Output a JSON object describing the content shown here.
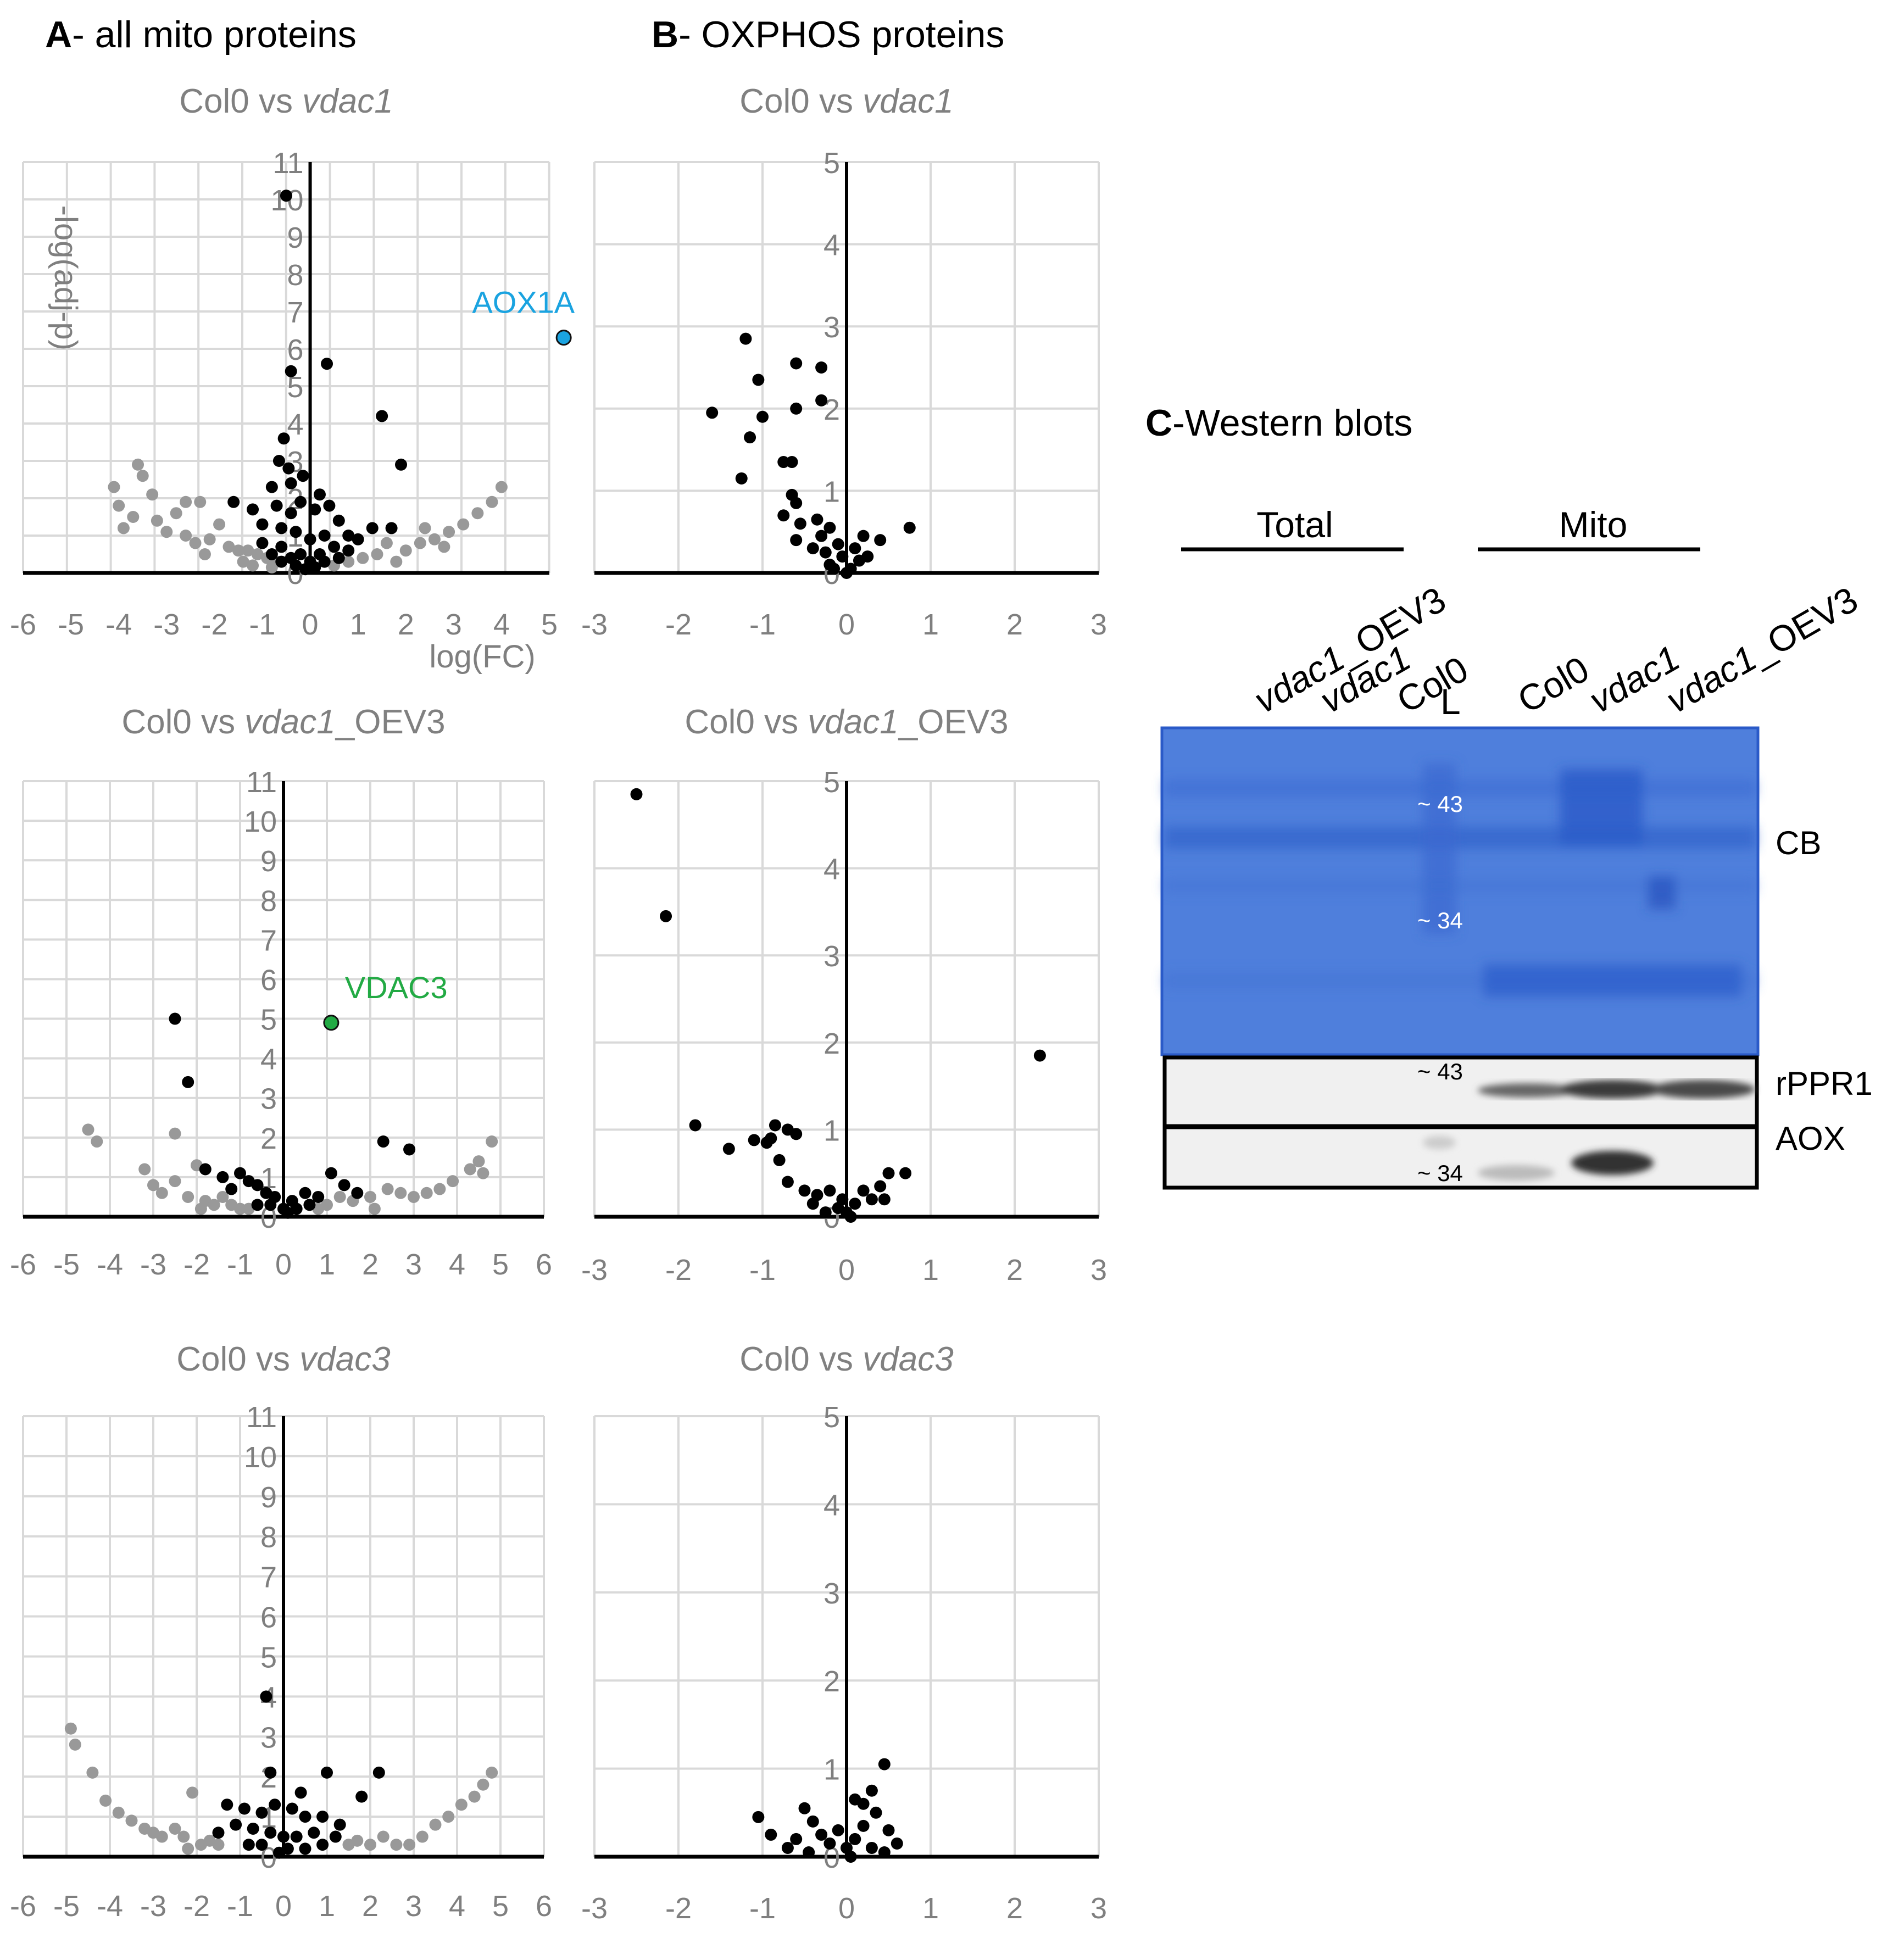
{
  "panel_headings": {
    "A": {
      "letter": "A",
      "text": "- all mito proteins"
    },
    "B": {
      "letter": "B",
      "text": "- OXPHOS proteins"
    },
    "C": {
      "letter": "C",
      "text": "-Western blots"
    }
  },
  "colors": {
    "grid": "#d9d9d9",
    "axis": "#000000",
    "tick": "#7f7f7f",
    "title": "#808080",
    "sig": "#000000",
    "nonsig": "#999999",
    "aox1a": "#1aa3e0",
    "vdac3": "#22aa44",
    "cb_blot": "#4f7fdc",
    "chemi": "#f0f0f0"
  },
  "chart_data": [
    {
      "id": "A1",
      "type": "scatter",
      "title": {
        "prefix": "Col0 vs ",
        "italic": "vdac1",
        "suffix": ""
      },
      "xlim": [
        -6,
        5
      ],
      "ylim": [
        0,
        11
      ],
      "xticks": [
        "-6",
        "-5",
        "-4",
        "-3",
        "-2",
        "-1",
        "0",
        "1",
        "2",
        "3",
        "4",
        "5"
      ],
      "yticks": [
        "0",
        "1",
        "2",
        "3",
        "4",
        "5",
        "6",
        "7",
        "8",
        "9",
        "10",
        "11"
      ],
      "xlabel": "log(FC)",
      "ylabel": "-log(adj-p)",
      "highlight": {
        "label": "AOX1A",
        "x": 5.3,
        "y": 6.3,
        "color_key": "aox1a"
      },
      "sig_points": [
        [
          -0.5,
          10.1
        ],
        [
          -0.4,
          5.4
        ],
        [
          0.35,
          5.6
        ],
        [
          -0.55,
          3.6
        ],
        [
          1.5,
          4.2
        ],
        [
          1.9,
          2.9
        ],
        [
          -0.65,
          3.0
        ],
        [
          -0.45,
          2.8
        ],
        [
          -0.15,
          2.6
        ],
        [
          -0.8,
          2.3
        ],
        [
          -0.4,
          2.4
        ],
        [
          0.2,
          2.1
        ],
        [
          -0.2,
          1.9
        ],
        [
          -1.6,
          1.9
        ],
        [
          -1.2,
          1.7
        ],
        [
          -0.7,
          1.8
        ],
        [
          -0.4,
          1.6
        ],
        [
          0.1,
          1.7
        ],
        [
          0.4,
          1.8
        ],
        [
          0.6,
          1.4
        ],
        [
          1.3,
          1.2
        ],
        [
          1.7,
          1.2
        ],
        [
          -1.0,
          1.3
        ],
        [
          -0.6,
          1.2
        ],
        [
          -0.3,
          1.1
        ],
        [
          0.3,
          1.0
        ],
        [
          0.8,
          1.0
        ],
        [
          1.0,
          0.9
        ],
        [
          -1.0,
          0.8
        ],
        [
          -0.6,
          0.7
        ],
        [
          0.0,
          0.9
        ],
        [
          0.5,
          0.7
        ],
        [
          -0.8,
          0.5
        ],
        [
          -0.4,
          0.4
        ],
        [
          0.2,
          0.5
        ],
        [
          0.6,
          0.4
        ],
        [
          -0.3,
          0.2
        ],
        [
          0.1,
          0.15
        ],
        [
          0.3,
          0.3
        ],
        [
          -0.1,
          0.1
        ],
        [
          -0.6,
          0.3
        ],
        [
          0.8,
          0.6
        ],
        [
          -0.2,
          0.5
        ],
        [
          0.0,
          0.3
        ]
      ],
      "nonsig_points": [
        [
          -4.1,
          2.3
        ],
        [
          -3.6,
          2.9
        ],
        [
          -3.5,
          2.6
        ],
        [
          -3.3,
          2.1
        ],
        [
          -4.0,
          1.8
        ],
        [
          -3.7,
          1.5
        ],
        [
          -3.2,
          1.4
        ],
        [
          -2.8,
          1.6
        ],
        [
          -2.6,
          1.9
        ],
        [
          -2.3,
          1.9
        ],
        [
          -3.0,
          1.1
        ],
        [
          -2.6,
          1.0
        ],
        [
          -2.4,
          0.8
        ],
        [
          -2.1,
          0.9
        ],
        [
          -1.9,
          1.3
        ],
        [
          -1.7,
          0.7
        ],
        [
          -1.5,
          0.6
        ],
        [
          -1.3,
          0.6
        ],
        [
          -1.1,
          0.5
        ],
        [
          -0.9,
          0.4
        ],
        [
          -0.7,
          0.3
        ],
        [
          -1.4,
          0.3
        ],
        [
          -1.2,
          0.2
        ],
        [
          -0.8,
          0.15
        ],
        [
          0.5,
          0.2
        ],
        [
          0.8,
          0.3
        ],
        [
          1.1,
          0.4
        ],
        [
          1.4,
          0.5
        ],
        [
          1.8,
          0.3
        ],
        [
          2.0,
          0.6
        ],
        [
          2.3,
          0.8
        ],
        [
          2.6,
          0.9
        ],
        [
          2.9,
          1.1
        ],
        [
          3.2,
          1.3
        ],
        [
          3.5,
          1.6
        ],
        [
          3.8,
          1.9
        ],
        [
          4.0,
          2.3
        ],
        [
          2.8,
          0.7
        ],
        [
          2.4,
          1.2
        ],
        [
          1.6,
          0.8
        ],
        [
          -3.9,
          1.2
        ],
        [
          -2.2,
          0.5
        ]
      ]
    },
    {
      "id": "B1",
      "type": "scatter",
      "title": {
        "prefix": "Col0 vs ",
        "italic": "vdac1",
        "suffix": ""
      },
      "xlim": [
        -3,
        3
      ],
      "ylim": [
        0,
        5
      ],
      "xticks": [
        "-3",
        "-2",
        "-1",
        "0",
        "1",
        "2",
        "3"
      ],
      "yticks": [
        "0",
        "1",
        "2",
        "3",
        "4",
        "5"
      ],
      "sig_points": [
        [
          -1.2,
          2.85
        ],
        [
          -1.05,
          2.35
        ],
        [
          -0.6,
          2.55
        ],
        [
          -0.3,
          2.5
        ],
        [
          -0.3,
          2.1
        ],
        [
          -1.6,
          1.95
        ],
        [
          -1.0,
          1.9
        ],
        [
          -0.6,
          2.0
        ],
        [
          -1.15,
          1.65
        ],
        [
          -0.75,
          1.35
        ],
        [
          -0.65,
          1.35
        ],
        [
          -1.25,
          1.15
        ],
        [
          -0.65,
          0.95
        ],
        [
          -0.6,
          0.85
        ],
        [
          -0.75,
          0.7
        ],
        [
          -0.55,
          0.6
        ],
        [
          -0.35,
          0.65
        ],
        [
          -0.2,
          0.55
        ],
        [
          -0.3,
          0.45
        ],
        [
          -0.6,
          0.4
        ],
        [
          -0.4,
          0.3
        ],
        [
          -0.25,
          0.25
        ],
        [
          -0.1,
          0.35
        ],
        [
          0.1,
          0.3
        ],
        [
          0.2,
          0.45
        ],
        [
          0.4,
          0.4
        ],
        [
          0.75,
          0.55
        ],
        [
          -0.2,
          0.1
        ],
        [
          0.05,
          0.05
        ],
        [
          0.15,
          0.15
        ],
        [
          -0.05,
          0.2
        ],
        [
          0.25,
          0.2
        ],
        [
          -0.15,
          0.05
        ],
        [
          0.0,
          0.0
        ]
      ],
      "nonsig_points": []
    },
    {
      "id": "A2",
      "type": "scatter",
      "title": {
        "prefix": "Col0 vs ",
        "italic": "vdac1",
        "suffix": "_OEV3"
      },
      "xlim": [
        -6,
        6
      ],
      "ylim": [
        0,
        11
      ],
      "xticks": [
        "-6",
        "-5",
        "-4",
        "-3",
        "-2",
        "-1",
        "0",
        "1",
        "2",
        "3",
        "4",
        "5",
        "6"
      ],
      "yticks": [
        "0",
        "1",
        "2",
        "3",
        "4",
        "5",
        "6",
        "7",
        "8",
        "9",
        "10",
        "11"
      ],
      "highlight": {
        "label": "VDAC3",
        "x": 1.1,
        "y": 4.9,
        "color_key": "vdac3"
      },
      "sig_points": [
        [
          -2.5,
          5.0
        ],
        [
          -2.2,
          3.4
        ],
        [
          2.3,
          1.9
        ],
        [
          2.9,
          1.7
        ],
        [
          -1.8,
          1.2
        ],
        [
          -1.4,
          1.0
        ],
        [
          -1.0,
          1.1
        ],
        [
          -0.8,
          0.9
        ],
        [
          -0.6,
          0.8
        ],
        [
          -0.4,
          0.6
        ],
        [
          -0.2,
          0.5
        ],
        [
          0.2,
          0.4
        ],
        [
          0.5,
          0.6
        ],
        [
          0.8,
          0.5
        ],
        [
          1.1,
          1.1
        ],
        [
          1.4,
          0.8
        ],
        [
          1.7,
          0.6
        ],
        [
          -1.2,
          0.7
        ],
        [
          -0.3,
          0.3
        ],
        [
          0.0,
          0.2
        ],
        [
          0.3,
          0.2
        ],
        [
          -0.6,
          0.3
        ],
        [
          0.6,
          0.3
        ],
        [
          0.1,
          0.1
        ]
      ],
      "nonsig_points": [
        [
          -4.5,
          2.2
        ],
        [
          -4.3,
          1.9
        ],
        [
          -2.5,
          2.1
        ],
        [
          -3.2,
          1.2
        ],
        [
          -3.0,
          0.8
        ],
        [
          -2.8,
          0.6
        ],
        [
          -2.5,
          0.9
        ],
        [
          -2.2,
          0.5
        ],
        [
          -2.0,
          1.3
        ],
        [
          -1.8,
          0.4
        ],
        [
          -1.6,
          0.3
        ],
        [
          -1.4,
          0.5
        ],
        [
          -1.2,
          0.3
        ],
        [
          -1.0,
          0.2
        ],
        [
          -0.8,
          0.2
        ],
        [
          0.8,
          0.2
        ],
        [
          1.0,
          0.3
        ],
        [
          1.3,
          0.5
        ],
        [
          1.6,
          0.4
        ],
        [
          2.0,
          0.5
        ],
        [
          2.4,
          0.7
        ],
        [
          2.7,
          0.6
        ],
        [
          3.0,
          0.5
        ],
        [
          3.3,
          0.6
        ],
        [
          3.6,
          0.7
        ],
        [
          3.9,
          0.9
        ],
        [
          4.3,
          1.2
        ],
        [
          4.5,
          1.4
        ],
        [
          4.6,
          1.1
        ],
        [
          4.8,
          1.9
        ],
        [
          -1.9,
          0.2
        ],
        [
          2.1,
          0.2
        ]
      ]
    },
    {
      "id": "B2",
      "type": "scatter",
      "title": {
        "prefix": "Col0 vs ",
        "italic": "vdac1",
        "suffix": "_OEV3"
      },
      "xlim": [
        -3,
        3
      ],
      "ylim": [
        0,
        5
      ],
      "xticks": [
        "-3",
        "-2",
        "-1",
        "0",
        "1",
        "2",
        "3"
      ],
      "yticks": [
        "0",
        "1",
        "2",
        "3",
        "4",
        "5"
      ],
      "sig_points": [
        [
          -2.5,
          4.85
        ],
        [
          -2.15,
          3.45
        ],
        [
          2.3,
          1.85
        ],
        [
          -1.8,
          1.05
        ],
        [
          -1.4,
          0.78
        ],
        [
          -1.1,
          0.88
        ],
        [
          -0.95,
          0.85
        ],
        [
          -0.85,
          1.05
        ],
        [
          -0.7,
          1.0
        ],
        [
          -0.6,
          0.95
        ],
        [
          -0.8,
          0.65
        ],
        [
          -0.9,
          0.9
        ],
        [
          -0.7,
          0.4
        ],
        [
          -0.5,
          0.3
        ],
        [
          -0.35,
          0.25
        ],
        [
          -0.2,
          0.3
        ],
        [
          -0.4,
          0.15
        ],
        [
          -0.1,
          0.1
        ],
        [
          0.0,
          0.05
        ],
        [
          0.1,
          0.15
        ],
        [
          0.2,
          0.3
        ],
        [
          0.3,
          0.2
        ],
        [
          0.4,
          0.35
        ],
        [
          0.5,
          0.5
        ],
        [
          0.7,
          0.5
        ],
        [
          0.45,
          0.2
        ],
        [
          -0.25,
          0.05
        ],
        [
          0.05,
          0.0
        ],
        [
          -0.05,
          0.2
        ]
      ],
      "nonsig_points": []
    },
    {
      "id": "A3",
      "type": "scatter",
      "title": {
        "prefix": "Col0 vs ",
        "italic": "vdac3",
        "suffix": ""
      },
      "xlim": [
        -6,
        6
      ],
      "ylim": [
        0,
        11
      ],
      "xticks": [
        "-6",
        "-5",
        "-4",
        "-3",
        "-2",
        "-1",
        "0",
        "1",
        "2",
        "3",
        "4",
        "5",
        "6"
      ],
      "yticks": [
        "0",
        "1",
        "2",
        "3",
        "4",
        "5",
        "6",
        "7",
        "8",
        "9",
        "10",
        "11"
      ],
      "sig_points": [
        [
          -0.4,
          4.0
        ],
        [
          -0.3,
          2.1
        ],
        [
          1.0,
          2.1
        ],
        [
          2.2,
          2.1
        ],
        [
          0.4,
          1.6
        ],
        [
          1.8,
          1.5
        ],
        [
          -1.3,
          1.3
        ],
        [
          -0.9,
          1.2
        ],
        [
          -0.5,
          1.1
        ],
        [
          -0.2,
          1.3
        ],
        [
          0.2,
          1.2
        ],
        [
          0.5,
          1.0
        ],
        [
          0.9,
          1.0
        ],
        [
          1.3,
          0.8
        ],
        [
          -1.1,
          0.8
        ],
        [
          -0.7,
          0.7
        ],
        [
          -0.3,
          0.6
        ],
        [
          0.0,
          0.5
        ],
        [
          0.3,
          0.5
        ],
        [
          0.7,
          0.6
        ],
        [
          -0.5,
          0.3
        ],
        [
          0.1,
          0.2
        ],
        [
          0.5,
          0.2
        ],
        [
          -0.1,
          0.1
        ],
        [
          -0.8,
          0.3
        ],
        [
          0.9,
          0.3
        ],
        [
          -1.5,
          0.6
        ],
        [
          1.2,
          0.5
        ]
      ],
      "nonsig_points": [
        [
          -4.9,
          3.2
        ],
        [
          -4.8,
          2.8
        ],
        [
          -4.4,
          2.1
        ],
        [
          -4.1,
          1.4
        ],
        [
          -3.8,
          1.1
        ],
        [
          -3.5,
          0.9
        ],
        [
          -3.2,
          0.7
        ],
        [
          -3.0,
          0.6
        ],
        [
          -2.8,
          0.5
        ],
        [
          -2.5,
          0.7
        ],
        [
          -2.3,
          0.5
        ],
        [
          -2.1,
          1.6
        ],
        [
          -1.9,
          0.3
        ],
        [
          -1.7,
          0.4
        ],
        [
          -1.5,
          0.3
        ],
        [
          1.5,
          0.3
        ],
        [
          1.7,
          0.4
        ],
        [
          2.0,
          0.3
        ],
        [
          2.3,
          0.5
        ],
        [
          2.6,
          0.3
        ],
        [
          2.9,
          0.3
        ],
        [
          3.2,
          0.5
        ],
        [
          3.5,
          0.8
        ],
        [
          3.8,
          1.0
        ],
        [
          4.1,
          1.3
        ],
        [
          4.4,
          1.5
        ],
        [
          4.6,
          1.8
        ],
        [
          4.8,
          2.1
        ],
        [
          -2.2,
          0.2
        ]
      ]
    },
    {
      "id": "B3",
      "type": "scatter",
      "title": {
        "prefix": "Col0 vs ",
        "italic": "vdac3",
        "suffix": ""
      },
      "xlim": [
        -3,
        3
      ],
      "ylim": [
        0,
        5
      ],
      "xticks": [
        "-3",
        "-2",
        "-1",
        "0",
        "1",
        "2",
        "3"
      ],
      "yticks": [
        "0",
        "1",
        "2",
        "3",
        "4",
        "5"
      ],
      "sig_points": [
        [
          0.45,
          1.05
        ],
        [
          0.3,
          0.75
        ],
        [
          0.2,
          0.6
        ],
        [
          0.35,
          0.5
        ],
        [
          0.1,
          0.65
        ],
        [
          -1.05,
          0.45
        ],
        [
          -0.9,
          0.25
        ],
        [
          -0.5,
          0.55
        ],
        [
          -0.4,
          0.4
        ],
        [
          -0.6,
          0.2
        ],
        [
          -0.3,
          0.25
        ],
        [
          -0.2,
          0.15
        ],
        [
          -0.1,
          0.3
        ],
        [
          0.0,
          0.1
        ],
        [
          0.1,
          0.2
        ],
        [
          0.3,
          0.1
        ],
        [
          0.5,
          0.3
        ],
        [
          0.6,
          0.15
        ],
        [
          0.2,
          0.35
        ],
        [
          -0.7,
          0.1
        ],
        [
          0.45,
          0.05
        ],
        [
          -0.45,
          0.05
        ],
        [
          0.05,
          0.0
        ]
      ],
      "nonsig_points": []
    }
  ],
  "western": {
    "group_total": "Total",
    "group_mito": "Mito",
    "lanes": [
      {
        "italic": "vdac1",
        "suffix": "_OEV3"
      },
      {
        "italic": "vdac1",
        "suffix": ""
      },
      {
        "italic": "",
        "suffix": "Col0"
      },
      {
        "italic": "",
        "suffix": "L"
      },
      {
        "italic": "",
        "suffix": "Col0"
      },
      {
        "italic": "vdac1",
        "suffix": ""
      },
      {
        "italic": "vdac1",
        "suffix": "_OEV3"
      }
    ],
    "cb": {
      "label": "CB",
      "marker_43": "~ 43",
      "marker_34": "~ 34"
    },
    "rppr1": {
      "label": "rPPR1",
      "marker": "~ 43"
    },
    "aox": {
      "label": "AOX",
      "marker": "~ 34"
    }
  }
}
